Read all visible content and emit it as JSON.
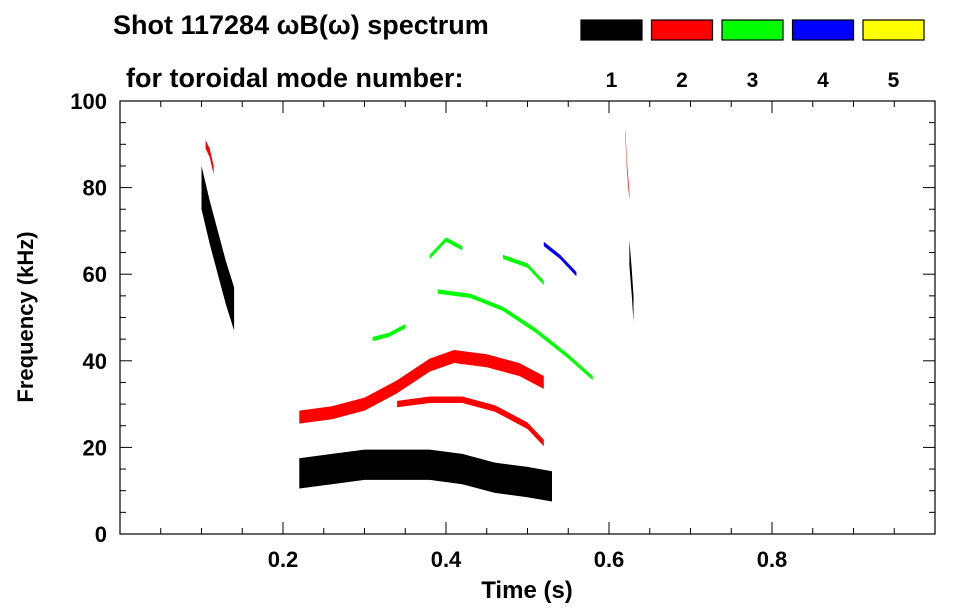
{
  "chart_data": {
    "type": "heatmap",
    "title_line1": "Shot 117284 ωB(ω) spectrum",
    "title_line2": "for toroidal mode number:",
    "xlabel": "Time (s)",
    "ylabel": "Frequency (kHz)",
    "xlim": [
      0.0,
      1.0
    ],
    "ylim": [
      0,
      100
    ],
    "xticks": [
      0.2,
      0.4,
      0.6,
      0.8
    ],
    "xtick_labels": [
      "0.2",
      "0.4",
      "0.6",
      "0.8"
    ],
    "yticks": [
      0,
      20,
      40,
      60,
      80,
      100
    ],
    "ytick_labels": [
      "0",
      "20",
      "40",
      "60",
      "80",
      "100"
    ],
    "grid": false,
    "legend_position": "top-right",
    "series": [
      {
        "name": "1",
        "color": "#000000",
        "bands": [
          {
            "x": [
              0.1,
              0.11,
              0.12,
              0.13,
              0.14
            ],
            "y": [
              80,
              72,
              65,
              58,
              52
            ],
            "width": 10
          },
          {
            "x": [
              0.22,
              0.26,
              0.3,
              0.34,
              0.38,
              0.42,
              0.46,
              0.5,
              0.53
            ],
            "y": [
              14,
              15,
              16,
              16,
              16,
              15,
              13,
              12,
              11
            ],
            "width": 7
          },
          {
            "x": [
              0.625,
              0.628,
              0.63
            ],
            "y": [
              65,
              58,
              52
            ],
            "width": 6
          }
        ]
      },
      {
        "name": "2",
        "color": "#ff0000",
        "bands": [
          {
            "x": [
              0.22,
              0.26,
              0.3,
              0.34,
              0.38,
              0.41,
              0.45,
              0.49,
              0.52
            ],
            "y": [
              27,
              28,
              30,
              34,
              39,
              41,
              40,
              38,
              35
            ],
            "width": 3
          },
          {
            "x": [
              0.34,
              0.38,
              0.42,
              0.46,
              0.5,
              0.52
            ],
            "y": [
              30,
              31,
              31,
              29,
              25,
              21
            ],
            "width": 1.5
          },
          {
            "x": [
              0.105,
              0.11,
              0.115
            ],
            "y": [
              90,
              88,
              84
            ],
            "width": 2
          },
          {
            "x": [
              0.62,
              0.622,
              0.625
            ],
            "y": [
              93,
              85,
              78
            ],
            "width": 2
          }
        ]
      },
      {
        "name": "3",
        "color": "#00ff00",
        "bands": [
          {
            "x": [
              0.38,
              0.4,
              0.42
            ],
            "y": [
              64,
              68,
              66
            ],
            "width": 1
          },
          {
            "x": [
              0.39,
              0.43,
              0.47,
              0.51,
              0.55,
              0.58
            ],
            "y": [
              56,
              55,
              52,
              47,
              41,
              36
            ],
            "width": 1
          },
          {
            "x": [
              0.47,
              0.5,
              0.52
            ],
            "y": [
              64,
              62,
              58
            ],
            "width": 1
          },
          {
            "x": [
              0.31,
              0.33,
              0.35
            ],
            "y": [
              45,
              46,
              48
            ],
            "width": 1
          }
        ]
      },
      {
        "name": "4",
        "color": "#0000ff",
        "bands": [
          {
            "x": [
              0.52,
              0.54,
              0.56
            ],
            "y": [
              67,
              64,
              60
            ],
            "width": 1
          }
        ]
      },
      {
        "name": "5",
        "color": "#ffff00",
        "bands": []
      }
    ]
  }
}
